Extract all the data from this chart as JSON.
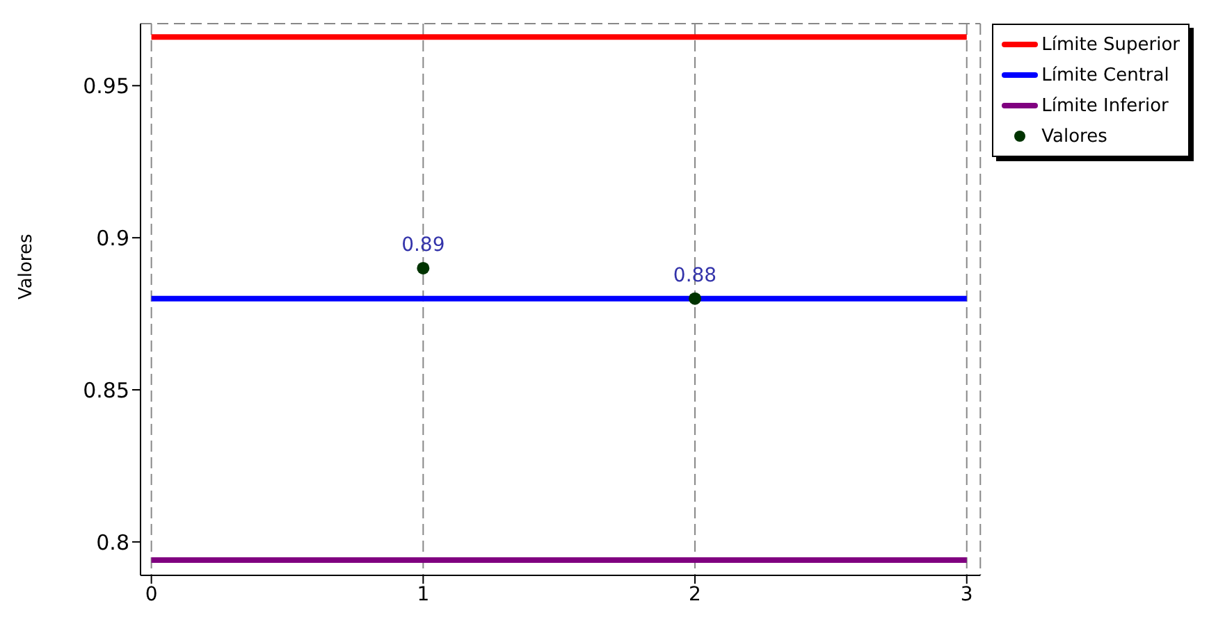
{
  "chart_data": {
    "type": "line",
    "ylabel": "Valores",
    "xlim": [
      -0.04,
      3.05
    ],
    "xticks": [
      0,
      1,
      2,
      3
    ],
    "ylim": [
      0.789,
      0.9704
    ],
    "yticks": [
      0.8,
      0.85,
      0.9,
      0.95
    ],
    "grid": true,
    "legend": "top right",
    "series": [
      {
        "name": "Límite Superior",
        "color": "#ff0000",
        "x": [
          0,
          3
        ],
        "values": [
          0.966,
          0.966
        ],
        "marker": "none"
      },
      {
        "name": "Límite Central",
        "color": "#0000ff",
        "x": [
          0,
          3
        ],
        "values": [
          0.88,
          0.88
        ],
        "marker": "none"
      },
      {
        "name": "Límite Inferior",
        "color": "#800080",
        "x": [
          0,
          3
        ],
        "values": [
          0.794,
          0.794
        ],
        "marker": "none"
      },
      {
        "name": "Valores",
        "type": "scatter",
        "color": "#003300",
        "x": [
          1,
          2
        ],
        "values": [
          0.89,
          0.88
        ],
        "marker": "circle",
        "data_labels": true
      }
    ]
  }
}
